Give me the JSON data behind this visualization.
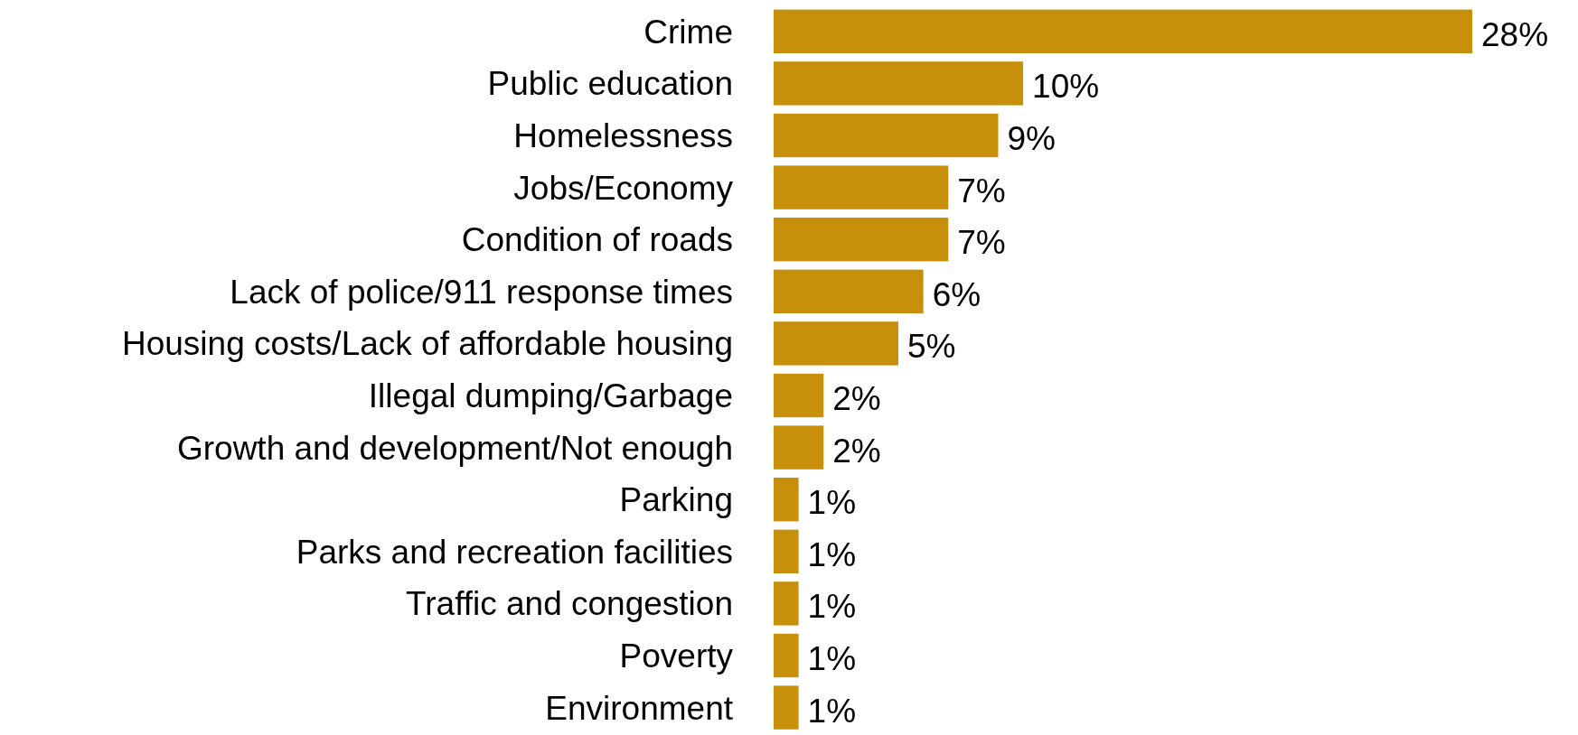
{
  "chart_data": {
    "type": "bar",
    "orientation": "horizontal",
    "categories": [
      "Crime",
      "Public education",
      "Homelessness",
      "Jobs/Economy",
      "Condition of roads",
      "Lack of police/911 response times",
      "Housing costs/Lack of affordable housing",
      "Illegal dumping/Garbage",
      "Growth and development/Not enough",
      "Parking",
      "Parks and recreation facilities",
      "Traffic and congestion",
      "Poverty",
      "Environment"
    ],
    "values": [
      28,
      10,
      9,
      7,
      7,
      6,
      5,
      2,
      2,
      1,
      1,
      1,
      1,
      1
    ],
    "value_labels": [
      "28%",
      "10%",
      "9%",
      "7%",
      "7%",
      "6%",
      "5%",
      "2%",
      "2%",
      "1%",
      "1%",
      "1%",
      "1%",
      "1%"
    ],
    "color": "#c8900a"
  }
}
